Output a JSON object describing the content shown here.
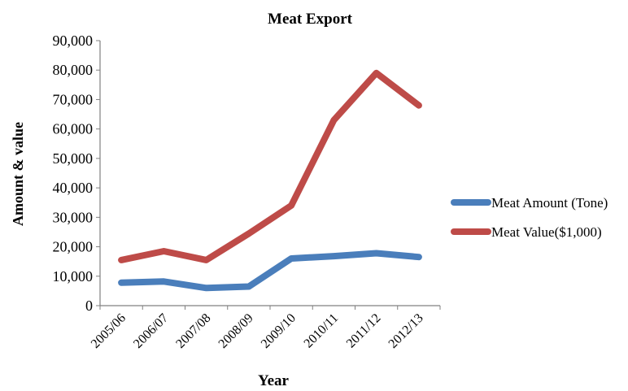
{
  "chart_data": {
    "type": "line",
    "title": "Meat Export",
    "xlabel": "Year",
    "ylabel": "Amount & value",
    "categories": [
      "2005/06",
      "2006/07",
      "2007/08",
      "2008/09",
      "2009/10",
      "2010/11",
      "2011/12",
      "2012/13"
    ],
    "ylim": [
      0,
      90000
    ],
    "yticks": [
      0,
      10000,
      20000,
      30000,
      40000,
      50000,
      60000,
      70000,
      80000,
      90000
    ],
    "ytick_labels": [
      "0",
      "10,000",
      "20,000",
      "30,000",
      "40,000",
      "50,000",
      "60,000",
      "70,000",
      "80,000",
      "90,000"
    ],
    "grid": false,
    "legend_position": "right",
    "series": [
      {
        "name": "Meat Amount (Tone)",
        "color": "#4a7ebb",
        "values": [
          7800,
          8200,
          6000,
          6500,
          16000,
          16800,
          17800,
          16500
        ]
      },
      {
        "name": "Meat Value($1,000)",
        "color": "#be4b48",
        "values": [
          15500,
          18500,
          15500,
          24500,
          34000,
          63000,
          79000,
          68000
        ]
      }
    ]
  }
}
